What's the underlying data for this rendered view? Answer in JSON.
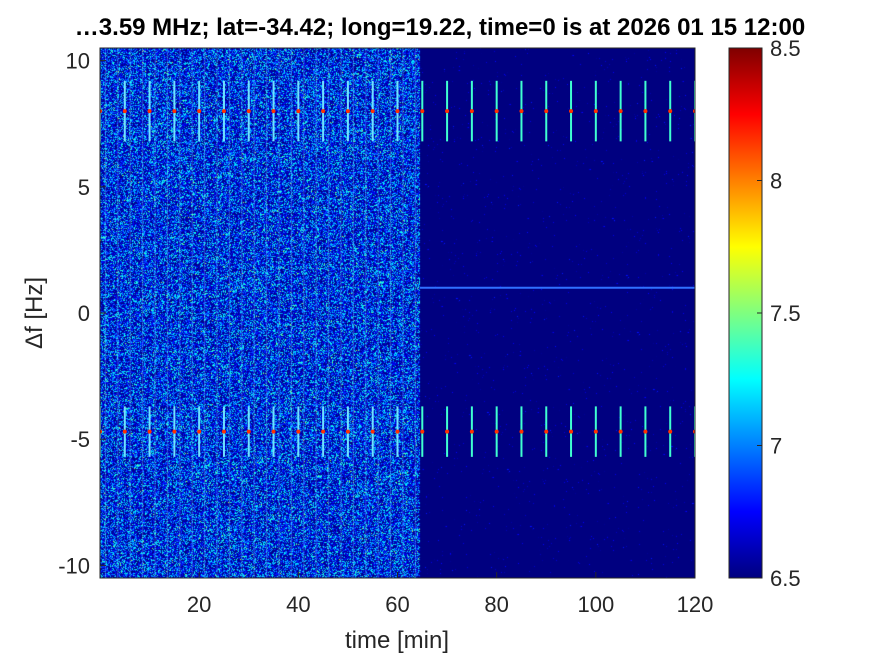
{
  "chart_data": {
    "type": "heatmap",
    "title": "…3.59 MHz;  lat=-34.42; long=19.22, time=0 is at 2026 01 15 12:00",
    "xlabel": "time [min]",
    "ylabel": "Δf [Hz]",
    "xlim": [
      0,
      120
    ],
    "ylim": [
      -10.5,
      10.5
    ],
    "xticks": [
      20,
      40,
      60,
      80,
      100,
      120
    ],
    "xtick_labels": [
      "20",
      "40",
      "60",
      "80",
      "100",
      "120"
    ],
    "yticks": [
      -10,
      -5,
      0,
      5,
      10
    ],
    "ytick_labels": [
      "-10",
      "-5",
      "0",
      "5",
      "10"
    ],
    "colorbar": {
      "colormap": "jet",
      "clim": [
        6.5,
        8.5
      ],
      "ticks": [
        6.5,
        7,
        7.5,
        8,
        8.5
      ],
      "tick_labels": [
        "6.5",
        "7",
        "7.5",
        "8",
        "8.5"
      ]
    },
    "regions": [
      {
        "description": "noise",
        "x_range": [
          0,
          64.5
        ],
        "level": [
          6.5,
          7.3
        ]
      },
      {
        "description": "background",
        "x_range": [
          64.5,
          120
        ],
        "level": 6.5
      }
    ],
    "features": [
      {
        "name": "upper tone",
        "y": 8.0
      },
      {
        "name": "lower tone",
        "y": -4.7
      },
      {
        "name": "center line",
        "y": 1.0
      }
    ],
    "pulse_period_min": 5
  }
}
